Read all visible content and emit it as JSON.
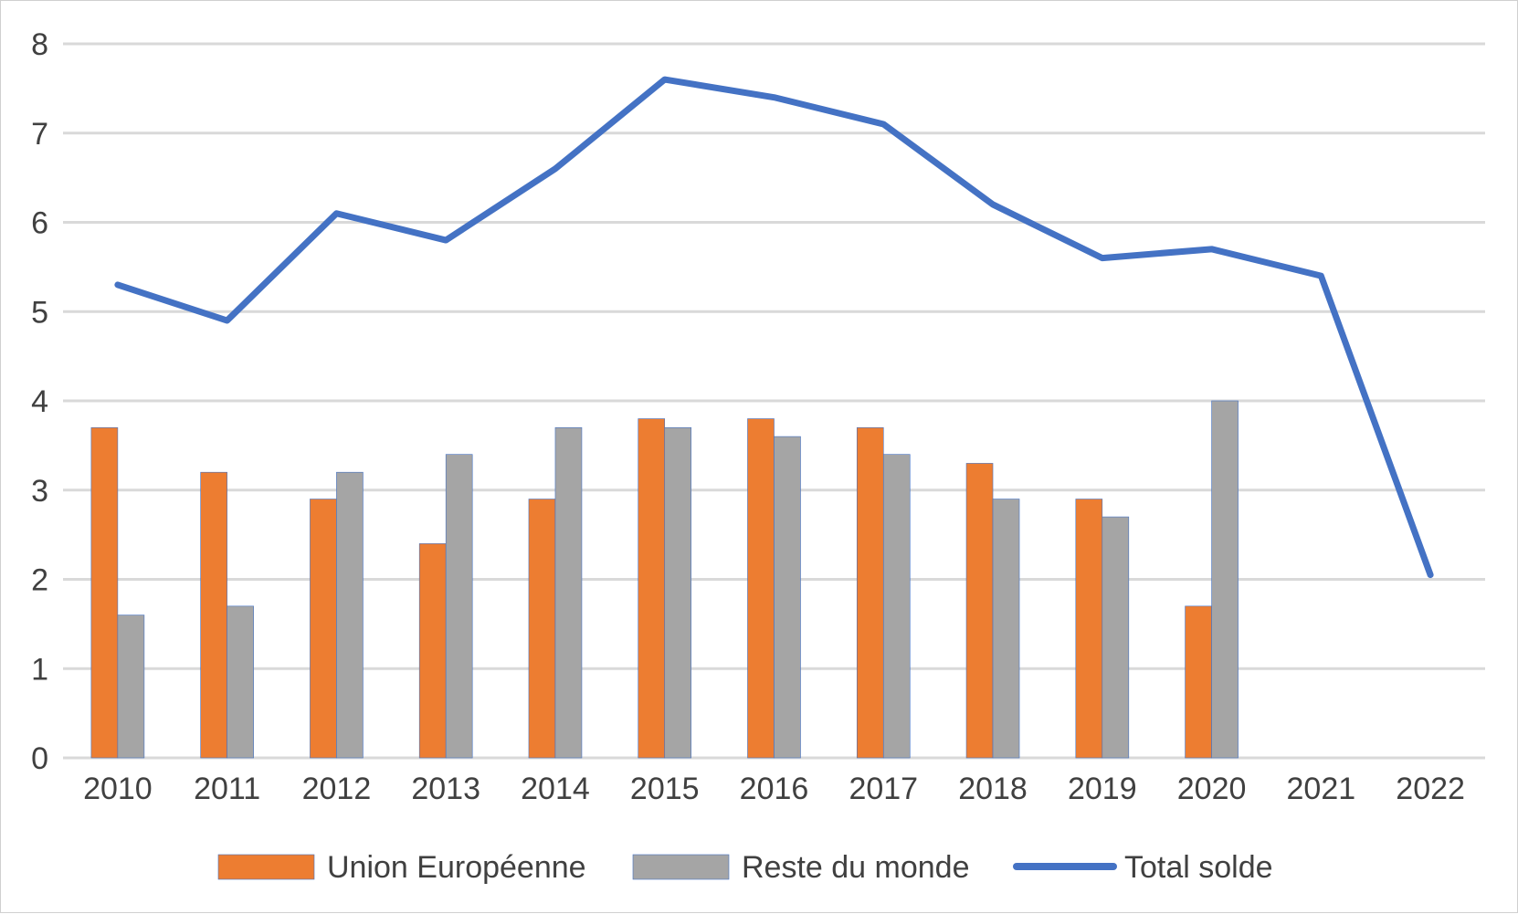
{
  "chart_data": {
    "type": "bar",
    "categories": [
      "2010",
      "2011",
      "2012",
      "2013",
      "2014",
      "2015",
      "2016",
      "2017",
      "2018",
      "2019",
      "2020",
      "2021",
      "2022"
    ],
    "series": [
      {
        "name": "Union Européenne",
        "type": "bar",
        "color": "#ED7D31",
        "values": [
          3.7,
          3.2,
          2.9,
          2.4,
          2.9,
          3.8,
          3.8,
          3.7,
          3.3,
          2.9,
          1.7,
          null,
          null
        ]
      },
      {
        "name": "Reste du monde",
        "type": "bar",
        "color": "#A5A5A5",
        "values": [
          1.6,
          1.7,
          3.2,
          3.4,
          3.7,
          3.7,
          3.6,
          3.4,
          2.9,
          2.7,
          4.0,
          null,
          null
        ]
      },
      {
        "name": "Total solde",
        "type": "line",
        "color": "#4472C4",
        "values": [
          5.3,
          4.9,
          6.1,
          5.8,
          6.6,
          7.6,
          7.4,
          7.1,
          6.2,
          5.6,
          5.7,
          5.4,
          2.05
        ]
      }
    ],
    "y_ticks": [
      "0",
      "1",
      "2",
      "3",
      "4",
      "5",
      "6",
      "7",
      "8"
    ],
    "ylim": [
      0,
      8
    ],
    "grid": true,
    "legend_position": "bottom",
    "gridline_color": "#D9D9D9",
    "title": "",
    "xlabel": "",
    "ylabel": ""
  }
}
